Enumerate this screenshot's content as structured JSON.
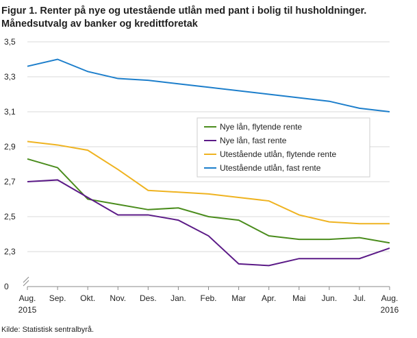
{
  "chart_data": {
    "type": "line",
    "title": "Figur 1. Renter på nye og utestående utlån med pant i bolig til husholdninger.",
    "subtitle": "Månedsutvalg av banker og kredittforetak",
    "source": "Kilde: Statistisk sentralbyrå.",
    "categories": [
      "Aug.",
      "Sep.",
      "Okt.",
      "Nov.",
      "Des.",
      "Jan.",
      "Feb.",
      "Mar",
      "Apr.",
      "Mai",
      "Jun.",
      "Jul.",
      "Aug."
    ],
    "category_years": [
      "2015",
      null,
      null,
      null,
      null,
      null,
      null,
      null,
      null,
      null,
      null,
      null,
      "2016"
    ],
    "ylim": [
      2.1,
      3.5
    ],
    "y_break_label": "0",
    "yticks": [
      {
        "value": 2.3,
        "label": "2,3"
      },
      {
        "value": 2.5,
        "label": "2,5"
      },
      {
        "value": 2.7,
        "label": "2,7"
      },
      {
        "value": 2.9,
        "label": "2,9"
      },
      {
        "value": 3.1,
        "label": "3,1"
      },
      {
        "value": 3.3,
        "label": "3,3"
      },
      {
        "value": 3.5,
        "label": "3,5"
      }
    ],
    "grid": true,
    "legend": "center-right",
    "series": [
      {
        "name": "Nye lån, flytende rente",
        "color": "#4a8c1c",
        "values": [
          2.83,
          2.78,
          2.6,
          2.57,
          2.54,
          2.55,
          2.5,
          2.48,
          2.39,
          2.37,
          2.37,
          2.38,
          2.35
        ]
      },
      {
        "name": "Nye lån, fast rente",
        "color": "#5b1a87",
        "values": [
          2.7,
          2.71,
          2.61,
          2.51,
          2.51,
          2.48,
          2.39,
          2.23,
          2.22,
          2.26,
          2.26,
          2.26,
          2.32
        ]
      },
      {
        "name": "Utestående utlån, flytende rente",
        "color": "#efb320",
        "values": [
          2.93,
          2.91,
          2.88,
          2.77,
          2.65,
          2.64,
          2.63,
          2.61,
          2.59,
          2.51,
          2.47,
          2.46,
          2.46
        ]
      },
      {
        "name": "Utestående utlån, fast rente",
        "color": "#1c7ecb",
        "values": [
          3.36,
          3.4,
          3.33,
          3.29,
          3.28,
          3.26,
          3.24,
          3.22,
          3.2,
          3.18,
          3.16,
          3.12,
          3.1
        ]
      }
    ]
  }
}
